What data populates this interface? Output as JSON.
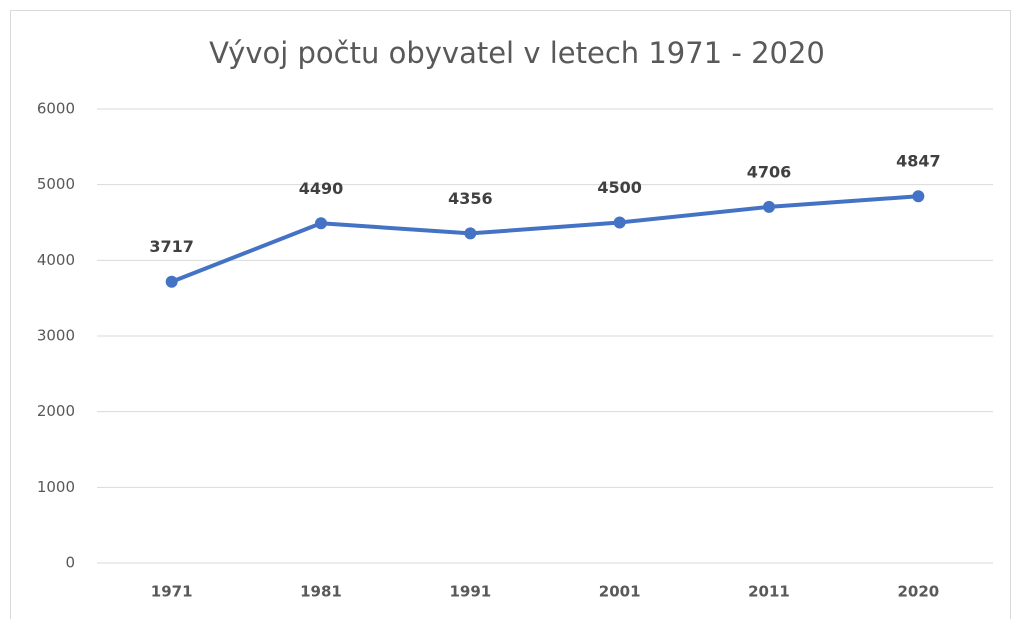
{
  "chart_data": {
    "type": "line",
    "title": "Vývoj počtu obyvatel v letech 1971 - 2020",
    "categories": [
      "1971",
      "1981",
      "1991",
      "2001",
      "2011",
      "2020"
    ],
    "values": [
      3717,
      4490,
      4356,
      4500,
      4706,
      4847
    ],
    "color": "#4472c4",
    "ylim": [
      0,
      6000
    ],
    "yticks": [
      0,
      1000,
      2000,
      3000,
      4000,
      5000,
      6000
    ],
    "grid": true
  }
}
